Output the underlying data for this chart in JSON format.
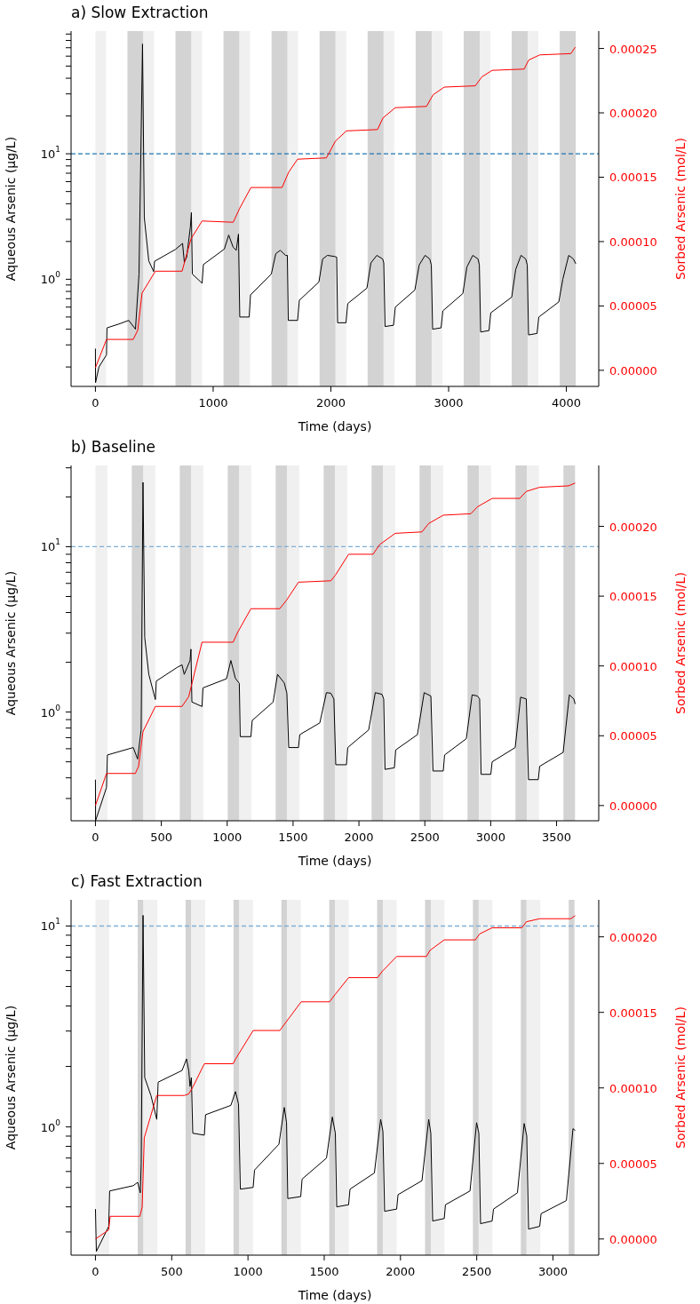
{
  "chart_data": [
    {
      "type": "line",
      "title": "a) Slow Extraction",
      "xlabel": "Time (days)",
      "ylabel": "Aqueous Arsenic (µg/L)",
      "y2label": "Sorbed Arsenic (mol/L)",
      "log": "y",
      "xlim": [
        -207,
        4275
      ],
      "xticks": [
        0,
        1000,
        2000,
        3000,
        4000
      ],
      "ylim": [
        0.14,
        95
      ],
      "yticks": [
        {
          "value": 0.2,
          "label": null
        },
        {
          "value": 0.3,
          "label": null
        },
        {
          "value": 0.4,
          "label": null
        },
        {
          "value": 0.5,
          "label": null
        },
        {
          "value": 0.6,
          "label": null
        },
        {
          "value": 0.7,
          "label": null
        },
        {
          "value": 0.8,
          "label": null
        },
        {
          "value": 0.9,
          "label": null
        },
        {
          "value": 1,
          "label": "10$^{0}$"
        },
        {
          "value": 2,
          "label": null
        },
        {
          "value": 3,
          "label": null
        },
        {
          "value": 4,
          "label": null
        },
        {
          "value": 5,
          "label": null
        },
        {
          "value": 6,
          "label": null
        },
        {
          "value": 7,
          "label": null
        },
        {
          "value": 8,
          "label": null
        },
        {
          "value": 9,
          "label": null
        },
        {
          "value": 10,
          "label": "10$^{1}$"
        },
        {
          "value": 20,
          "label": null
        },
        {
          "value": 30,
          "label": null
        },
        {
          "value": 40,
          "label": null
        },
        {
          "value": 50,
          "label": null
        },
        {
          "value": 60,
          "label": null
        },
        {
          "value": 70,
          "label": null
        },
        {
          "value": 80,
          "label": null
        },
        {
          "value": 90,
          "label": null
        }
      ],
      "y2lim": [
        -1.25e-05,
        0.0002635
      ],
      "y2ticks": [
        {
          "value": 0,
          "label": "0.00000"
        },
        {
          "value": 5e-05,
          "label": "0.00005"
        },
        {
          "value": 0.0001,
          "label": "0.00010"
        },
        {
          "value": 0.00015,
          "label": "0.00015"
        },
        {
          "value": 0.0002,
          "label": "0.00020"
        },
        {
          "value": 0.00025,
          "label": "0.00025"
        }
      ],
      "series": [
        {
          "color": "#000000",
          "x": [
            0,
            1,
            30,
            94,
            98,
            200,
            283,
            340,
            370,
            400,
            415,
            453,
            495,
            502,
            680,
            740,
            755,
            775,
            806,
            815,
            823,
            906,
            917,
            1095,
            1132,
            1170,
            1196,
            1215,
            1226,
            1306,
            1317,
            1494,
            1532,
            1570,
            1615,
            1630,
            1638,
            1717,
            1732,
            1898,
            1930,
            1970,
            2030,
            2049,
            2057,
            2128,
            2143,
            2306,
            2340,
            2390,
            2440,
            2449,
            2460,
            2532,
            2547,
            2713,
            2750,
            2800,
            2840,
            2853,
            2864,
            2936,
            2951,
            3121,
            3155,
            3205,
            3250,
            3261,
            3272,
            3343,
            3358,
            3536,
            3570,
            3615,
            3655,
            3668,
            3679,
            3751,
            3766,
            3936,
            3970,
            4020,
            4060,
            4080
          ],
          "values": [
            0.28,
            0.15,
            0.2,
            0.25,
            0.41,
            0.44,
            0.47,
            0.4,
            1.1,
            75,
            3.1,
            1.4,
            1.15,
            1.39,
            1.73,
            1.93,
            1.37,
            1.5,
            2.6,
            3.4,
            1.1,
            0.93,
            1.31,
            1.74,
            2.25,
            1.8,
            1.7,
            2.29,
            0.5,
            0.5,
            0.75,
            1.1,
            1.6,
            1.7,
            1.55,
            1.55,
            0.47,
            0.47,
            0.68,
            0.95,
            1.45,
            1.55,
            1.52,
            1.5,
            0.45,
            0.45,
            0.64,
            0.85,
            1.35,
            1.55,
            1.45,
            1.35,
            0.42,
            0.43,
            0.6,
            0.82,
            1.3,
            1.55,
            1.45,
            1.3,
            0.4,
            0.41,
            0.56,
            0.77,
            1.25,
            1.55,
            1.45,
            1.3,
            0.38,
            0.39,
            0.54,
            0.72,
            1.2,
            1.55,
            1.45,
            1.3,
            0.36,
            0.37,
            0.5,
            0.66,
            1.0,
            1.55,
            1.45,
            1.33
          ]
        },
        {
          "color": "#ff0000",
          "axis": "y2",
          "x": [
            0,
            94,
            321,
            359,
            396,
            509,
            736,
            811,
            906,
            1170,
            1226,
            1321,
            1585,
            1642,
            1717,
            1962,
            2038,
            2132,
            2396,
            2442,
            2547,
            2812,
            2868,
            2963,
            3227,
            3283,
            3370,
            3642,
            3680,
            3774,
            4038,
            4076
          ],
          "values": [
            2e-06,
            2.4e-05,
            2.4e-05,
            3.1e-05,
            6e-05,
            7.7e-05,
            7.7e-05,
            0.000102,
            0.000116,
            0.000115,
            0.000126,
            0.000142,
            0.000142,
            0.000154,
            0.000164,
            0.000165,
            0.000178,
            0.000186,
            0.000187,
            0.000196,
            0.000204,
            0.000205,
            0.000214,
            0.00022,
            0.000221,
            0.000228,
            0.000233,
            0.000234,
            0.000241,
            0.000245,
            0.000246,
            0.000251
          ]
        }
      ],
      "ref_lines": [
        {
          "axis": "y",
          "value": 10,
          "color": "#1f77b4",
          "line_style": "dashed"
        }
      ],
      "bands": [
        {
          "axis": "x",
          "from": 0,
          "to": 90,
          "color": "#f0f0f0"
        },
        {
          "axis": "x",
          "from": 272,
          "to": 408,
          "color": "#d3d3d3"
        },
        {
          "axis": "x",
          "from": 408,
          "to": 498,
          "color": "#f0f0f0"
        },
        {
          "axis": "x",
          "from": 680,
          "to": 816,
          "color": "#d3d3d3"
        },
        {
          "axis": "x",
          "from": 816,
          "to": 906,
          "color": "#f0f0f0"
        },
        {
          "axis": "x",
          "from": 1088,
          "to": 1224,
          "color": "#d3d3d3"
        },
        {
          "axis": "x",
          "from": 1224,
          "to": 1314,
          "color": "#f0f0f0"
        },
        {
          "axis": "x",
          "from": 1496,
          "to": 1632,
          "color": "#d3d3d3"
        },
        {
          "axis": "x",
          "from": 1632,
          "to": 1722,
          "color": "#f0f0f0"
        },
        {
          "axis": "x",
          "from": 1904,
          "to": 2040,
          "color": "#d3d3d3"
        },
        {
          "axis": "x",
          "from": 2040,
          "to": 2130,
          "color": "#f0f0f0"
        },
        {
          "axis": "x",
          "from": 2312,
          "to": 2448,
          "color": "#d3d3d3"
        },
        {
          "axis": "x",
          "from": 2448,
          "to": 2538,
          "color": "#f0f0f0"
        },
        {
          "axis": "x",
          "from": 2720,
          "to": 2856,
          "color": "#d3d3d3"
        },
        {
          "axis": "x",
          "from": 2856,
          "to": 2946,
          "color": "#f0f0f0"
        },
        {
          "axis": "x",
          "from": 3128,
          "to": 3264,
          "color": "#d3d3d3"
        },
        {
          "axis": "x",
          "from": 3264,
          "to": 3354,
          "color": "#f0f0f0"
        },
        {
          "axis": "x",
          "from": 3536,
          "to": 3672,
          "color": "#d3d3d3"
        },
        {
          "axis": "x",
          "from": 3672,
          "to": 3762,
          "color": "#f0f0f0"
        },
        {
          "axis": "x",
          "from": 3944,
          "to": 4080,
          "color": "#d3d3d3"
        }
      ]
    },
    {
      "type": "line",
      "title": "b) Baseline",
      "xlabel": "Time (days)",
      "ylabel": "Aqueous Arsenic (µg/L)",
      "y2label": "Sorbed Arsenic (mol/L)",
      "log": "y",
      "xlim": [
        -185,
        3820
      ],
      "xticks": [
        0,
        500,
        1000,
        1500,
        2000,
        2500,
        3000,
        3500
      ],
      "ylim": [
        0.22,
        31
      ],
      "yticks": [
        {
          "value": 0.3,
          "label": null
        },
        {
          "value": 0.4,
          "label": null
        },
        {
          "value": 0.5,
          "label": null
        },
        {
          "value": 0.6,
          "label": null
        },
        {
          "value": 0.7,
          "label": null
        },
        {
          "value": 0.8,
          "label": null
        },
        {
          "value": 0.9,
          "label": null
        },
        {
          "value": 1,
          "label": "10$^{0}$"
        },
        {
          "value": 2,
          "label": null
        },
        {
          "value": 3,
          "label": null
        },
        {
          "value": 4,
          "label": null
        },
        {
          "value": 5,
          "label": null
        },
        {
          "value": 6,
          "label": null
        },
        {
          "value": 7,
          "label": null
        },
        {
          "value": 8,
          "label": null
        },
        {
          "value": 9,
          "label": null
        },
        {
          "value": 10,
          "label": "10$^{1}$"
        },
        {
          "value": 20,
          "label": null
        },
        {
          "value": 30,
          "label": null
        }
      ],
      "y2lim": [
        -1.09e-05,
        0.0002436
      ],
      "y2ticks": [
        {
          "value": 0,
          "label": "0.00000"
        },
        {
          "value": 5e-05,
          "label": "0.00005"
        },
        {
          "value": 0.0001,
          "label": "0.00010"
        },
        {
          "value": 0.00015,
          "label": "0.00015"
        },
        {
          "value": 0.0002,
          "label": "0.00020"
        }
      ],
      "series": [
        {
          "color": "#000000",
          "x": [
            0,
            1,
            84,
            91,
            287,
            320,
            347,
            361,
            374,
            405,
            455,
            462,
            624,
            657,
            674,
            718,
            725,
            732,
            809,
            816,
            995,
            1028,
            1062,
            1092,
            1099,
            1180,
            1190,
            1349,
            1382,
            1433,
            1453,
            1467,
            1541,
            1551,
            1703,
            1753,
            1787,
            1810,
            1824,
            1905,
            1915,
            2074,
            2124,
            2175,
            2188,
            2198,
            2269,
            2279,
            2444,
            2495,
            2546,
            2562,
            2640,
            2650,
            2815,
            2859,
            2900,
            2916,
            2927,
            3001,
            3011,
            3186,
            3227,
            3270,
            3287,
            3361,
            3372,
            3550,
            3597,
            3631,
            3641
          ],
          "values": [
            0.39,
            0.22,
            0.35,
            0.55,
            0.61,
            0.52,
            0.78,
            24.5,
            2.83,
            1.69,
            1.19,
            1.54,
            1.87,
            1.93,
            1.69,
            2.05,
            2.4,
            1.15,
            1.08,
            1.4,
            1.59,
            2.05,
            1.6,
            1.49,
            0.71,
            0.71,
            0.89,
            1.15,
            1.69,
            1.5,
            1.3,
            0.61,
            0.61,
            0.73,
            0.86,
            1.31,
            1.3,
            1.2,
            0.48,
            0.48,
            0.61,
            0.78,
            1.31,
            1.28,
            1.2,
            0.45,
            0.46,
            0.59,
            0.73,
            1.31,
            1.25,
            0.44,
            0.44,
            0.55,
            0.69,
            1.27,
            1.25,
            1.2,
            0.42,
            0.42,
            0.5,
            0.61,
            1.23,
            1.2,
            0.39,
            0.39,
            0.47,
            0.57,
            1.27,
            1.2,
            1.12
          ]
        },
        {
          "color": "#ff0000",
          "axis": "y2",
          "x": [
            0,
            84,
            303,
            327,
            361,
            455,
            657,
            708,
            809,
            1045,
            1079,
            1180,
            1399,
            1450,
            1541,
            1787,
            1821,
            1922,
            2107,
            2158,
            2276,
            2478,
            2529,
            2640,
            2849,
            2900,
            3011,
            3220,
            3270,
            3372,
            3591,
            3641
          ],
          "values": [
            0,
            2.3e-05,
            2.3e-05,
            2.8e-05,
            5.3e-05,
            7.1e-05,
            7.1e-05,
            7.8e-05,
            0.000117,
            0.000117,
            0.000124,
            0.000141,
            0.000141,
            0.000147,
            0.00016,
            0.000161,
            0.000165,
            0.00018,
            0.00018,
            0.000187,
            0.000195,
            0.000196,
            0.000202,
            0.000208,
            0.000209,
            0.000214,
            0.00022,
            0.00022,
            0.000225,
            0.000228,
            0.000229,
            0.000231
          ]
        }
      ],
      "ref_lines": [
        {
          "axis": "y",
          "value": 10,
          "color": "#7fb0d8",
          "line_style": "dashed"
        }
      ],
      "bands": [
        {
          "axis": "x",
          "from": 0,
          "to": 91,
          "color": "#f0f0f0"
        },
        {
          "axis": "x",
          "from": 276,
          "to": 364,
          "color": "#d3d3d3"
        },
        {
          "axis": "x",
          "from": 364,
          "to": 455,
          "color": "#f0f0f0"
        },
        {
          "axis": "x",
          "from": 640,
          "to": 728,
          "color": "#d3d3d3"
        },
        {
          "axis": "x",
          "from": 728,
          "to": 819,
          "color": "#f0f0f0"
        },
        {
          "axis": "x",
          "from": 1004,
          "to": 1092,
          "color": "#d3d3d3"
        },
        {
          "axis": "x",
          "from": 1092,
          "to": 1183,
          "color": "#f0f0f0"
        },
        {
          "axis": "x",
          "from": 1368,
          "to": 1456,
          "color": "#d3d3d3"
        },
        {
          "axis": "x",
          "from": 1456,
          "to": 1547,
          "color": "#f0f0f0"
        },
        {
          "axis": "x",
          "from": 1732,
          "to": 1820,
          "color": "#d3d3d3"
        },
        {
          "axis": "x",
          "from": 1820,
          "to": 1911,
          "color": "#f0f0f0"
        },
        {
          "axis": "x",
          "from": 2096,
          "to": 2184,
          "color": "#d3d3d3"
        },
        {
          "axis": "x",
          "from": 2184,
          "to": 2275,
          "color": "#f0f0f0"
        },
        {
          "axis": "x",
          "from": 2460,
          "to": 2548,
          "color": "#d3d3d3"
        },
        {
          "axis": "x",
          "from": 2548,
          "to": 2639,
          "color": "#f0f0f0"
        },
        {
          "axis": "x",
          "from": 2824,
          "to": 2912,
          "color": "#d3d3d3"
        },
        {
          "axis": "x",
          "from": 2912,
          "to": 3003,
          "color": "#f0f0f0"
        },
        {
          "axis": "x",
          "from": 3188,
          "to": 3276,
          "color": "#d3d3d3"
        },
        {
          "axis": "x",
          "from": 3276,
          "to": 3367,
          "color": "#f0f0f0"
        },
        {
          "axis": "x",
          "from": 3552,
          "to": 3640,
          "color": "#d3d3d3"
        }
      ]
    },
    {
      "type": "line",
      "title": "c) Fast Extraction",
      "xlabel": "Time (days)",
      "ylabel": "Aqueous Arsenic (µg/L)",
      "y2label": "Sorbed Arsenic (mol/L)",
      "log": "y",
      "xlim": [
        -160,
        3300
      ],
      "xticks": [
        0,
        500,
        1000,
        1500,
        2000,
        2500,
        3000
      ],
      "ylim": [
        0.23,
        13.5
      ],
      "yticks": [
        {
          "value": 0.3,
          "label": null
        },
        {
          "value": 0.4,
          "label": null
        },
        {
          "value": 0.5,
          "label": null
        },
        {
          "value": 0.6,
          "label": null
        },
        {
          "value": 0.7,
          "label": null
        },
        {
          "value": 0.8,
          "label": null
        },
        {
          "value": 0.9,
          "label": null
        },
        {
          "value": 1,
          "label": "10$^{0}$"
        },
        {
          "value": 2,
          "label": null
        },
        {
          "value": 3,
          "label": null
        },
        {
          "value": 4,
          "label": null
        },
        {
          "value": 5,
          "label": null
        },
        {
          "value": 6,
          "label": null
        },
        {
          "value": 7,
          "label": null
        },
        {
          "value": 8,
          "label": null
        },
        {
          "value": 9,
          "label": null
        },
        {
          "value": 10,
          "label": "10$^{1}$"
        }
      ],
      "y2lim": [
        -1.07e-05,
        0.0002245
      ],
      "y2ticks": [
        {
          "value": 0,
          "label": "0.00000"
        },
        {
          "value": 5e-05,
          "label": "0.00005"
        },
        {
          "value": 0.0001,
          "label": "0.00010"
        },
        {
          "value": 0.00015,
          "label": "0.00015"
        },
        {
          "value": 0.0002,
          "label": "0.00020"
        }
      ],
      "series": [
        {
          "color": "#000000",
          "x": [
            0,
            6,
            87,
            93,
            248,
            277,
            294,
            300,
            312,
            323,
            364,
            402,
            411,
            568,
            597,
            612,
            620,
            629,
            638,
            714,
            722,
            888,
            918,
            938,
            950,
            1034,
            1043,
            1203,
            1238,
            1253,
            1261,
            1346,
            1355,
            1515,
            1553,
            1573,
            1582,
            1660,
            1669,
            1829,
            1870,
            1885,
            1896,
            1975,
            1984,
            2141,
            2185,
            2199,
            2211,
            2287,
            2295,
            2456,
            2499,
            2514,
            2525,
            2601,
            2610,
            2767,
            2811,
            2828,
            2840,
            2913,
            2922,
            3088,
            3131,
            3146
          ],
          "values": [
            0.39,
            0.24,
            0.32,
            0.48,
            0.51,
            0.53,
            0.47,
            0.66,
            11.3,
            1.76,
            1.43,
            1.09,
            1.67,
            1.91,
            2.18,
            1.9,
            1.59,
            1.76,
            0.93,
            0.91,
            1.15,
            1.28,
            1.5,
            1.3,
            0.49,
            0.5,
            0.61,
            0.82,
            1.25,
            1.05,
            0.44,
            0.45,
            0.55,
            0.7,
            1.12,
            0.93,
            0.4,
            0.41,
            0.49,
            0.59,
            1.09,
            0.95,
            0.38,
            0.39,
            0.46,
            0.54,
            1.09,
            0.93,
            0.34,
            0.35,
            0.41,
            0.48,
            1.05,
            0.93,
            0.33,
            0.34,
            0.39,
            0.47,
            1.04,
            0.9,
            0.31,
            0.32,
            0.37,
            0.43,
            0.98,
            0.96
          ]
        },
        {
          "color": "#ff0000",
          "axis": "y2",
          "x": [
            0,
            87,
            96,
            291,
            306,
            320,
            402,
            583,
            612,
            641,
            714,
            903,
            918,
            1034,
            1209,
            1238,
            1349,
            1535,
            1573,
            1660,
            1850,
            1879,
            1975,
            2170,
            2193,
            2287,
            2491,
            2520,
            2601,
            2796,
            2826,
            2913,
            3117,
            3146
          ],
          "values": [
            0,
            6e-06,
            1.5e-05,
            1.5e-05,
            2.1e-05,
            6.7e-05,
            9.5e-05,
            9.5e-05,
            9.6e-05,
            0.000101,
            0.000116,
            0.000116,
            0.000119,
            0.000138,
            0.000138,
            0.000142,
            0.000157,
            0.000157,
            0.000162,
            0.000173,
            0.000173,
            0.000177,
            0.000187,
            0.000187,
            0.000191,
            0.000198,
            0.000198,
            0.000202,
            0.000206,
            0.000206,
            0.00021,
            0.000212,
            0.000212,
            0.000214
          ]
        }
      ],
      "ref_lines": [
        {
          "axis": "y",
          "value": 10,
          "color": "#7fb0d8",
          "line_style": "dashed"
        }
      ],
      "bands": [
        {
          "axis": "x",
          "from": 0,
          "to": 90,
          "color": "#f0f0f0"
        },
        {
          "axis": "x",
          "from": 277,
          "to": 315,
          "color": "#d3d3d3"
        },
        {
          "axis": "x",
          "from": 315,
          "to": 405,
          "color": "#f0f0f0"
        },
        {
          "axis": "x",
          "from": 591,
          "to": 629,
          "color": "#d3d3d3"
        },
        {
          "axis": "x",
          "from": 629,
          "to": 719,
          "color": "#f0f0f0"
        },
        {
          "axis": "x",
          "from": 905,
          "to": 943,
          "color": "#d3d3d3"
        },
        {
          "axis": "x",
          "from": 943,
          "to": 1033,
          "color": "#f0f0f0"
        },
        {
          "axis": "x",
          "from": 1219,
          "to": 1257,
          "color": "#d3d3d3"
        },
        {
          "axis": "x",
          "from": 1257,
          "to": 1347,
          "color": "#f0f0f0"
        },
        {
          "axis": "x",
          "from": 1533,
          "to": 1571,
          "color": "#d3d3d3"
        },
        {
          "axis": "x",
          "from": 1571,
          "to": 1661,
          "color": "#f0f0f0"
        },
        {
          "axis": "x",
          "from": 1847,
          "to": 1885,
          "color": "#d3d3d3"
        },
        {
          "axis": "x",
          "from": 1885,
          "to": 1975,
          "color": "#f0f0f0"
        },
        {
          "axis": "x",
          "from": 2161,
          "to": 2199,
          "color": "#d3d3d3"
        },
        {
          "axis": "x",
          "from": 2199,
          "to": 2289,
          "color": "#f0f0f0"
        },
        {
          "axis": "x",
          "from": 2475,
          "to": 2513,
          "color": "#d3d3d3"
        },
        {
          "axis": "x",
          "from": 2513,
          "to": 2603,
          "color": "#f0f0f0"
        },
        {
          "axis": "x",
          "from": 2789,
          "to": 2827,
          "color": "#d3d3d3"
        },
        {
          "axis": "x",
          "from": 2827,
          "to": 2917,
          "color": "#f0f0f0"
        },
        {
          "axis": "x",
          "from": 3103,
          "to": 3141,
          "color": "#d3d3d3"
        }
      ]
    }
  ]
}
